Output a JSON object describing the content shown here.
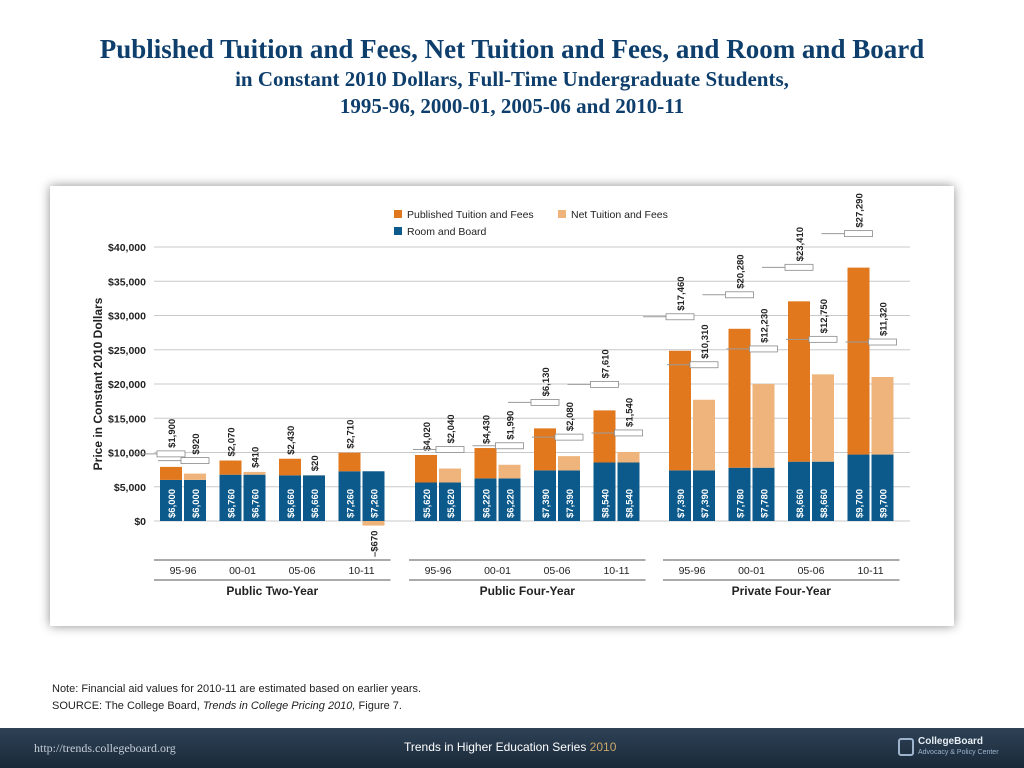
{
  "title": {
    "line1": "Published Tuition and Fees, Net Tuition and Fees, and Room and Board",
    "line2": "in Constant 2010 Dollars, Full-Time Undergraduate Students,",
    "line3": "1995-96, 2000-01, 2005-06 and 2010-11"
  },
  "colors": {
    "published": "#e2781e",
    "net": "#efb47c",
    "room": "#0c5a8c",
    "text": "#222222",
    "grid": "#c8c8c8"
  },
  "chart_data": {
    "type": "bar",
    "stacked": true,
    "ylabel": "Price in Constant 2010 Dollars",
    "ylim": [
      0,
      40000
    ],
    "yticks": [
      0,
      5000,
      10000,
      15000,
      20000,
      25000,
      30000,
      35000,
      40000
    ],
    "ytick_labels": [
      "$0",
      "$5,000",
      "$10,000",
      "$15,000",
      "$20,000",
      "$25,000",
      "$30,000",
      "$35,000",
      "$40,000"
    ],
    "grid": true,
    "legend": {
      "position": "top",
      "items": [
        {
          "key": "published",
          "label": "Published Tuition and Fees"
        },
        {
          "key": "net",
          "label": "Net Tuition and Fees"
        },
        {
          "key": "room",
          "label": "Room and Board"
        }
      ]
    },
    "groups": [
      {
        "label": "Public Two-Year",
        "years": [
          {
            "label": "95-96",
            "published": {
              "tuition": 1900,
              "tuition_label": "$1,900",
              "room": 6000,
              "room_label": "$6,000"
            },
            "net": {
              "tuition": 920,
              "tuition_label": "$920",
              "room": 6000,
              "room_label": "$6,000"
            }
          },
          {
            "label": "00-01",
            "published": {
              "tuition": 2070,
              "tuition_label": "$2,070",
              "room": 6760,
              "room_label": "$6,760"
            },
            "net": {
              "tuition": 410,
              "tuition_label": "$410",
              "room": 6760,
              "room_label": "$6,760"
            }
          },
          {
            "label": "05-06",
            "published": {
              "tuition": 2430,
              "tuition_label": "$2,430",
              "room": 6660,
              "room_label": "$6,660"
            },
            "net": {
              "tuition": 20,
              "tuition_label": "$20",
              "room": 6660,
              "room_label": "$6,660"
            }
          },
          {
            "label": "10-11",
            "published": {
              "tuition": 2710,
              "tuition_label": "$2,710",
              "room": 7260,
              "room_label": "$7,260"
            },
            "net": {
              "tuition": -670,
              "tuition_label": "–$670",
              "room": 7260,
              "room_label": "$7,260"
            }
          }
        ]
      },
      {
        "label": "Public Four-Year",
        "years": [
          {
            "label": "95-96",
            "published": {
              "tuition": 4020,
              "tuition_label": "$4,020",
              "room": 5620,
              "room_label": "$5,620"
            },
            "net": {
              "tuition": 2040,
              "tuition_label": "$2,040",
              "room": 5620,
              "room_label": "$5,620"
            }
          },
          {
            "label": "00-01",
            "published": {
              "tuition": 4430,
              "tuition_label": "$4,430",
              "room": 6220,
              "room_label": "$6,220"
            },
            "net": {
              "tuition": 1990,
              "tuition_label": "$1,990",
              "room": 6220,
              "room_label": "$6,220"
            }
          },
          {
            "label": "05-06",
            "published": {
              "tuition": 6130,
              "tuition_label": "$6,130",
              "room": 7390,
              "room_label": "$7,390"
            },
            "net": {
              "tuition": 2080,
              "tuition_label": "$2,080",
              "room": 7390,
              "room_label": "$7,390"
            }
          },
          {
            "label": "10-11",
            "published": {
              "tuition": 7610,
              "tuition_label": "$7,610",
              "room": 8540,
              "room_label": "$8,540"
            },
            "net": {
              "tuition": 1540,
              "tuition_label": "$1,540",
              "room": 8540,
              "room_label": "$8,540"
            }
          }
        ]
      },
      {
        "label": "Private Four-Year",
        "years": [
          {
            "label": "95-96",
            "published": {
              "tuition": 17460,
              "tuition_label": "$17,460",
              "room": 7390,
              "room_label": "$7,390"
            },
            "net": {
              "tuition": 10310,
              "tuition_label": "$10,310",
              "room": 7390,
              "room_label": "$7,390"
            }
          },
          {
            "label": "00-01",
            "published": {
              "tuition": 20280,
              "tuition_label": "$20,280",
              "room": 7780,
              "room_label": "$7,780"
            },
            "net": {
              "tuition": 12230,
              "tuition_label": "$12,230",
              "room": 7780,
              "room_label": "$7,780"
            }
          },
          {
            "label": "05-06",
            "published": {
              "tuition": 23410,
              "tuition_label": "$23,410",
              "room": 8660,
              "room_label": "$8,660"
            },
            "net": {
              "tuition": 12750,
              "tuition_label": "$12,750",
              "room": 8660,
              "room_label": "$8,660"
            }
          },
          {
            "label": "10-11",
            "published": {
              "tuition": 27290,
              "tuition_label": "$27,290",
              "room": 9700,
              "room_label": "$9,700"
            },
            "net": {
              "tuition": 11320,
              "tuition_label": "$11,320",
              "room": 9700,
              "room_label": "$9,700"
            }
          }
        ]
      }
    ]
  },
  "note": {
    "line1": "Note: Financial aid values for 2010-11 are estimated based on earlier years.",
    "source_prefix": "SOURCE: The College Board, ",
    "source_title": "Trends in College Pricing 2010,",
    "source_suffix": " Figure 7."
  },
  "footer": {
    "url": "http://trends.collegeboard.org",
    "series": "Trends in Higher Education Series",
    "year": "2010",
    "logo_name": "CollegeBoard",
    "logo_sub": "Advocacy & Policy Center"
  }
}
